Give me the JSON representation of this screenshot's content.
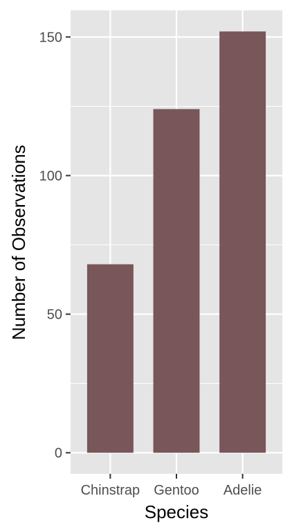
{
  "chart_data": {
    "type": "bar",
    "categories": [
      "Chinstrap",
      "Gentoo",
      "Adelie"
    ],
    "values": [
      68,
      124,
      152
    ],
    "xlabel": "Species",
    "ylabel": "Number of Observations",
    "ylim": [
      -7.6,
      159.6
    ],
    "yticks": [
      0,
      50,
      100,
      150
    ],
    "grid": true,
    "colors": {
      "panel_background": "#e5e5e5",
      "gridline": "#ffffff",
      "bar_fill": "#785659",
      "tick_mark": "#333333",
      "tick_label": "#4d4d4d"
    }
  }
}
